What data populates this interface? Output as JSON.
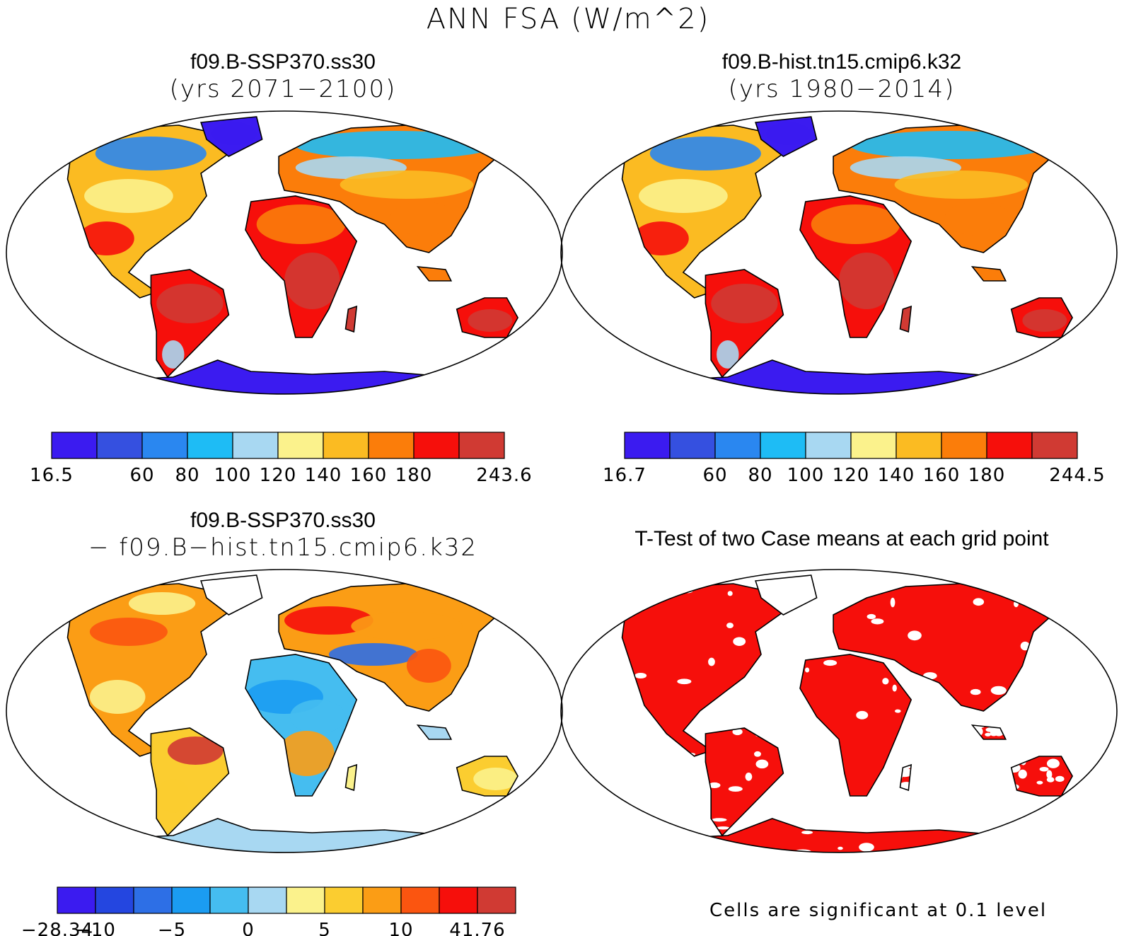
{
  "title": "ANN FSA (W/m^2)",
  "panels": [
    {
      "id": "p1",
      "title": "f09.B-SSP370.ss30",
      "subtitle": "(yrs 2071−2100)",
      "scheme": "abs"
    },
    {
      "id": "p2",
      "title": "f09.B-hist.tn15.cmip6.k32",
      "subtitle": "(yrs 1980−2014)",
      "scheme": "abs"
    },
    {
      "id": "p3",
      "title": "f09.B-SSP370.ss30",
      "subtitle": "− f09.B−hist.tn15.cmip6.k32",
      "scheme": "diff"
    },
    {
      "id": "p4",
      "title": "T-Test of two Case means at each grid point",
      "subtitle": "",
      "scheme": "ttest"
    }
  ],
  "colorbars": {
    "p1": {
      "colors": [
        "#3b1bf0",
        "#3550e0",
        "#2a87f0",
        "#1ebcf5",
        "#a8d8f2",
        "#fbf28c",
        "#fbbb22",
        "#fb7d0a",
        "#f60f0b",
        "#d03a33"
      ],
      "labels": [
        "16.5",
        "",
        "60",
        "80",
        "100",
        "120",
        "140",
        "160",
        "180",
        "",
        "243.6"
      ]
    },
    "p2": {
      "colors": [
        "#3b1bf0",
        "#3550e0",
        "#2a87f0",
        "#1ebcf5",
        "#a8d8f2",
        "#fbf28c",
        "#fbbb22",
        "#fb7d0a",
        "#f60f0b",
        "#d03a33"
      ],
      "labels": [
        "16.7",
        "",
        "60",
        "80",
        "100",
        "120",
        "140",
        "160",
        "180",
        "",
        "244.5"
      ]
    },
    "p3": {
      "colors": [
        "#3b1bf0",
        "#2446e0",
        "#2d6fe6",
        "#1b9cf2",
        "#45bdf0",
        "#a8d8f2",
        "#fbf28c",
        "#fbcd30",
        "#fb9d15",
        "#fb5510",
        "#f60f0b",
        "#d03a33"
      ],
      "labels": [
        "−28.34",
        "−10",
        "",
        "−5",
        "",
        "0",
        "",
        "5",
        "",
        "10",
        "",
        "41.76"
      ]
    }
  },
  "note": "Cells are significant at 0.1 level",
  "map_colors": {
    "antarctica_abs": "#3b1bf0",
    "antarctica_diff": "#a8d8f2",
    "ttest_red": "#f60f0b",
    "outline": "#000000"
  }
}
